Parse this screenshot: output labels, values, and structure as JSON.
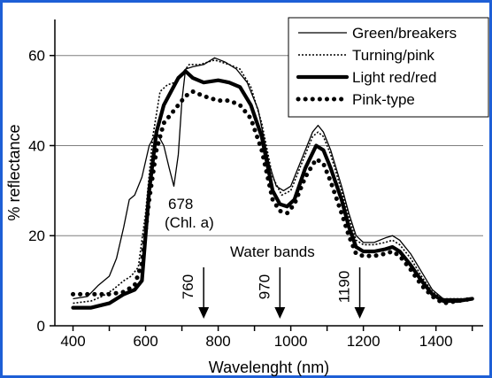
{
  "chart_data": {
    "type": "line",
    "title": "",
    "xlabel": "Wavelenght (nm)",
    "ylabel": "% reflectance",
    "xlim": [
      350,
      1530
    ],
    "ylim": [
      0,
      68
    ],
    "xticks": [
      400,
      600,
      800,
      1000,
      1200,
      1400
    ],
    "yticks": [
      0,
      20,
      40,
      60
    ],
    "grid": "horizontal",
    "legend_position": "top-right",
    "series": [
      {
        "name": "Green/breakers",
        "style": "solid-thin",
        "points": [
          [
            400,
            6
          ],
          [
            440,
            6.5
          ],
          [
            470,
            9
          ],
          [
            500,
            11
          ],
          [
            520,
            15
          ],
          [
            540,
            22
          ],
          [
            555,
            28
          ],
          [
            570,
            29
          ],
          [
            590,
            33
          ],
          [
            610,
            40
          ],
          [
            630,
            43
          ],
          [
            650,
            40
          ],
          [
            665,
            35
          ],
          [
            678,
            31
          ],
          [
            690,
            38
          ],
          [
            700,
            50
          ],
          [
            710,
            57
          ],
          [
            730,
            57.5
          ],
          [
            760,
            58
          ],
          [
            790,
            59.5
          ],
          [
            820,
            58.5
          ],
          [
            850,
            57
          ],
          [
            880,
            54
          ],
          [
            910,
            48
          ],
          [
            940,
            36
          ],
          [
            960,
            31
          ],
          [
            980,
            30
          ],
          [
            1000,
            31
          ],
          [
            1030,
            37
          ],
          [
            1060,
            43
          ],
          [
            1075,
            44.5
          ],
          [
            1090,
            43
          ],
          [
            1110,
            39
          ],
          [
            1140,
            31
          ],
          [
            1160,
            25
          ],
          [
            1180,
            20
          ],
          [
            1200,
            18.5
          ],
          [
            1230,
            18.5
          ],
          [
            1260,
            19.5
          ],
          [
            1280,
            20
          ],
          [
            1300,
            19
          ],
          [
            1330,
            16
          ],
          [
            1360,
            12
          ],
          [
            1390,
            8
          ],
          [
            1420,
            6
          ],
          [
            1450,
            6
          ],
          [
            1500,
            6
          ]
        ]
      },
      {
        "name": "Turning/pink",
        "style": "dotted-thin",
        "points": [
          [
            400,
            5
          ],
          [
            450,
            5.5
          ],
          [
            480,
            6.5
          ],
          [
            510,
            8
          ],
          [
            540,
            10
          ],
          [
            560,
            11
          ],
          [
            580,
            13
          ],
          [
            600,
            25
          ],
          [
            620,
            42
          ],
          [
            640,
            52
          ],
          [
            660,
            53.5
          ],
          [
            680,
            54
          ],
          [
            700,
            56
          ],
          [
            720,
            58
          ],
          [
            750,
            58
          ],
          [
            790,
            59
          ],
          [
            830,
            58
          ],
          [
            860,
            57
          ],
          [
            890,
            53
          ],
          [
            920,
            45
          ],
          [
            950,
            33
          ],
          [
            975,
            29
          ],
          [
            1000,
            30
          ],
          [
            1030,
            36
          ],
          [
            1060,
            42
          ],
          [
            1075,
            43
          ],
          [
            1090,
            42
          ],
          [
            1110,
            38
          ],
          [
            1140,
            30
          ],
          [
            1160,
            24
          ],
          [
            1180,
            19
          ],
          [
            1200,
            18
          ],
          [
            1230,
            18
          ],
          [
            1260,
            18.5
          ],
          [
            1280,
            19
          ],
          [
            1300,
            18
          ],
          [
            1330,
            15
          ],
          [
            1360,
            11
          ],
          [
            1390,
            7.5
          ],
          [
            1420,
            6
          ],
          [
            1460,
            6
          ],
          [
            1500,
            6
          ]
        ]
      },
      {
        "name": "Light red/red",
        "style": "solid-thick",
        "points": [
          [
            400,
            4
          ],
          [
            450,
            4
          ],
          [
            500,
            5
          ],
          [
            540,
            7
          ],
          [
            570,
            8
          ],
          [
            590,
            10
          ],
          [
            610,
            30
          ],
          [
            630,
            43
          ],
          [
            650,
            49
          ],
          [
            670,
            52
          ],
          [
            690,
            55
          ],
          [
            710,
            56.5
          ],
          [
            730,
            55
          ],
          [
            760,
            54
          ],
          [
            800,
            54.5
          ],
          [
            830,
            54
          ],
          [
            860,
            53
          ],
          [
            890,
            49
          ],
          [
            920,
            42
          ],
          [
            950,
            30
          ],
          [
            970,
            27
          ],
          [
            990,
            26.5
          ],
          [
            1010,
            28
          ],
          [
            1040,
            35
          ],
          [
            1070,
            40
          ],
          [
            1090,
            39
          ],
          [
            1110,
            35
          ],
          [
            1140,
            28
          ],
          [
            1160,
            22
          ],
          [
            1180,
            17.5
          ],
          [
            1200,
            16.5
          ],
          [
            1230,
            16.5
          ],
          [
            1260,
            17
          ],
          [
            1280,
            17.5
          ],
          [
            1300,
            16.5
          ],
          [
            1330,
            13.5
          ],
          [
            1360,
            10
          ],
          [
            1390,
            7
          ],
          [
            1420,
            5.5
          ],
          [
            1460,
            5.5
          ],
          [
            1500,
            6
          ]
        ]
      },
      {
        "name": "Pink-type",
        "style": "dotted-thick",
        "points": [
          [
            400,
            7
          ],
          [
            450,
            7
          ],
          [
            500,
            7
          ],
          [
            540,
            7.5
          ],
          [
            570,
            9
          ],
          [
            590,
            14
          ],
          [
            610,
            28
          ],
          [
            630,
            39
          ],
          [
            650,
            45
          ],
          [
            670,
            47
          ],
          [
            690,
            49
          ],
          [
            710,
            51
          ],
          [
            730,
            52
          ],
          [
            760,
            51
          ],
          [
            800,
            50
          ],
          [
            830,
            50
          ],
          [
            860,
            49
          ],
          [
            890,
            46
          ],
          [
            920,
            39
          ],
          [
            950,
            28
          ],
          [
            970,
            25.5
          ],
          [
            990,
            25
          ],
          [
            1010,
            27
          ],
          [
            1040,
            33
          ],
          [
            1070,
            37
          ],
          [
            1090,
            36
          ],
          [
            1110,
            32
          ],
          [
            1140,
            25
          ],
          [
            1160,
            20
          ],
          [
            1180,
            16
          ],
          [
            1200,
            15.5
          ],
          [
            1230,
            15.5
          ],
          [
            1260,
            16
          ],
          [
            1280,
            16.5
          ],
          [
            1300,
            15.5
          ],
          [
            1330,
            12.5
          ],
          [
            1360,
            9
          ],
          [
            1390,
            6.5
          ],
          [
            1420,
            5
          ],
          [
            1460,
            5.5
          ],
          [
            1500,
            6
          ]
        ]
      }
    ],
    "annotations": [
      {
        "text": "678",
        "x": 678,
        "y": 31
      },
      {
        "text": "(Chl. a)",
        "x": 678,
        "y": 31
      },
      {
        "text": "Water bands",
        "x": 970,
        "y": 17
      }
    ],
    "arrows": [
      {
        "label": "760",
        "x": 760
      },
      {
        "label": "970",
        "x": 970
      },
      {
        "label": "1190",
        "x": 1190
      }
    ]
  }
}
